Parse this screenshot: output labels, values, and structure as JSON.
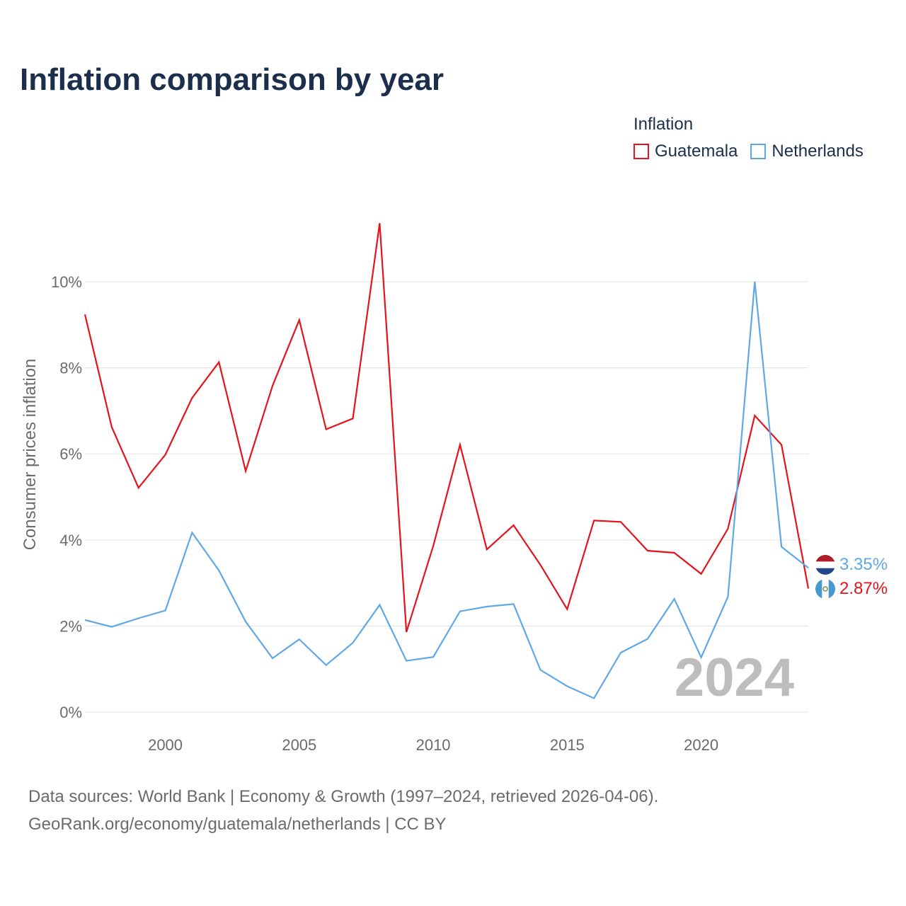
{
  "chart_data": {
    "type": "line",
    "title": "Inflation comparison by year",
    "legend_title": "Inflation",
    "ylabel": "Consumer prices inflation",
    "xlabel": "",
    "x": [
      1997,
      1998,
      1999,
      2000,
      2001,
      2002,
      2003,
      2004,
      2005,
      2006,
      2007,
      2008,
      2009,
      2010,
      2011,
      2012,
      2013,
      2014,
      2015,
      2016,
      2017,
      2018,
      2019,
      2020,
      2021,
      2022,
      2023,
      2024
    ],
    "xlim": [
      1997,
      2024
    ],
    "ylim": [
      0,
      11.5
    ],
    "x_ticks": [
      2000,
      2005,
      2010,
      2015,
      2020
    ],
    "x_tick_labels": [
      "2000",
      "2005",
      "2010",
      "2015",
      "2020"
    ],
    "y_ticks": [
      0,
      2,
      4,
      6,
      8,
      10
    ],
    "y_tick_labels": [
      "0%",
      "2%",
      "4%",
      "6%",
      "8%",
      "10%"
    ],
    "grid": true,
    "year_watermark": "2024",
    "series": [
      {
        "name": "Guatemala",
        "color": "#e4131c",
        "flag": "guatemala-flag",
        "end_label": "2.87%",
        "values": [
          9.24,
          6.62,
          5.21,
          5.98,
          7.3,
          8.13,
          5.6,
          7.58,
          9.11,
          6.57,
          6.82,
          11.36,
          1.86,
          3.86,
          6.21,
          3.78,
          4.34,
          3.42,
          2.39,
          4.45,
          4.42,
          3.75,
          3.7,
          3.21,
          4.26,
          6.89,
          6.21,
          2.87
        ]
      },
      {
        "name": "Netherlands",
        "color": "#5fa8e8",
        "flag": "netherlands-flag",
        "end_label": "3.35%",
        "values": [
          2.14,
          1.98,
          2.18,
          2.36,
          4.17,
          3.29,
          2.1,
          1.25,
          1.69,
          1.09,
          1.61,
          2.49,
          1.19,
          1.28,
          2.34,
          2.45,
          2.51,
          0.98,
          0.6,
          0.32,
          1.38,
          1.7,
          2.63,
          1.27,
          2.68,
          10.0,
          3.84,
          3.35
        ]
      }
    ]
  },
  "footer": {
    "line1": "Data sources: World Bank | Economy & Growth (1997–2024, retrieved 2026-04-06).",
    "line2": "GeoRank.org/economy/guatemala/netherlands | CC BY"
  }
}
